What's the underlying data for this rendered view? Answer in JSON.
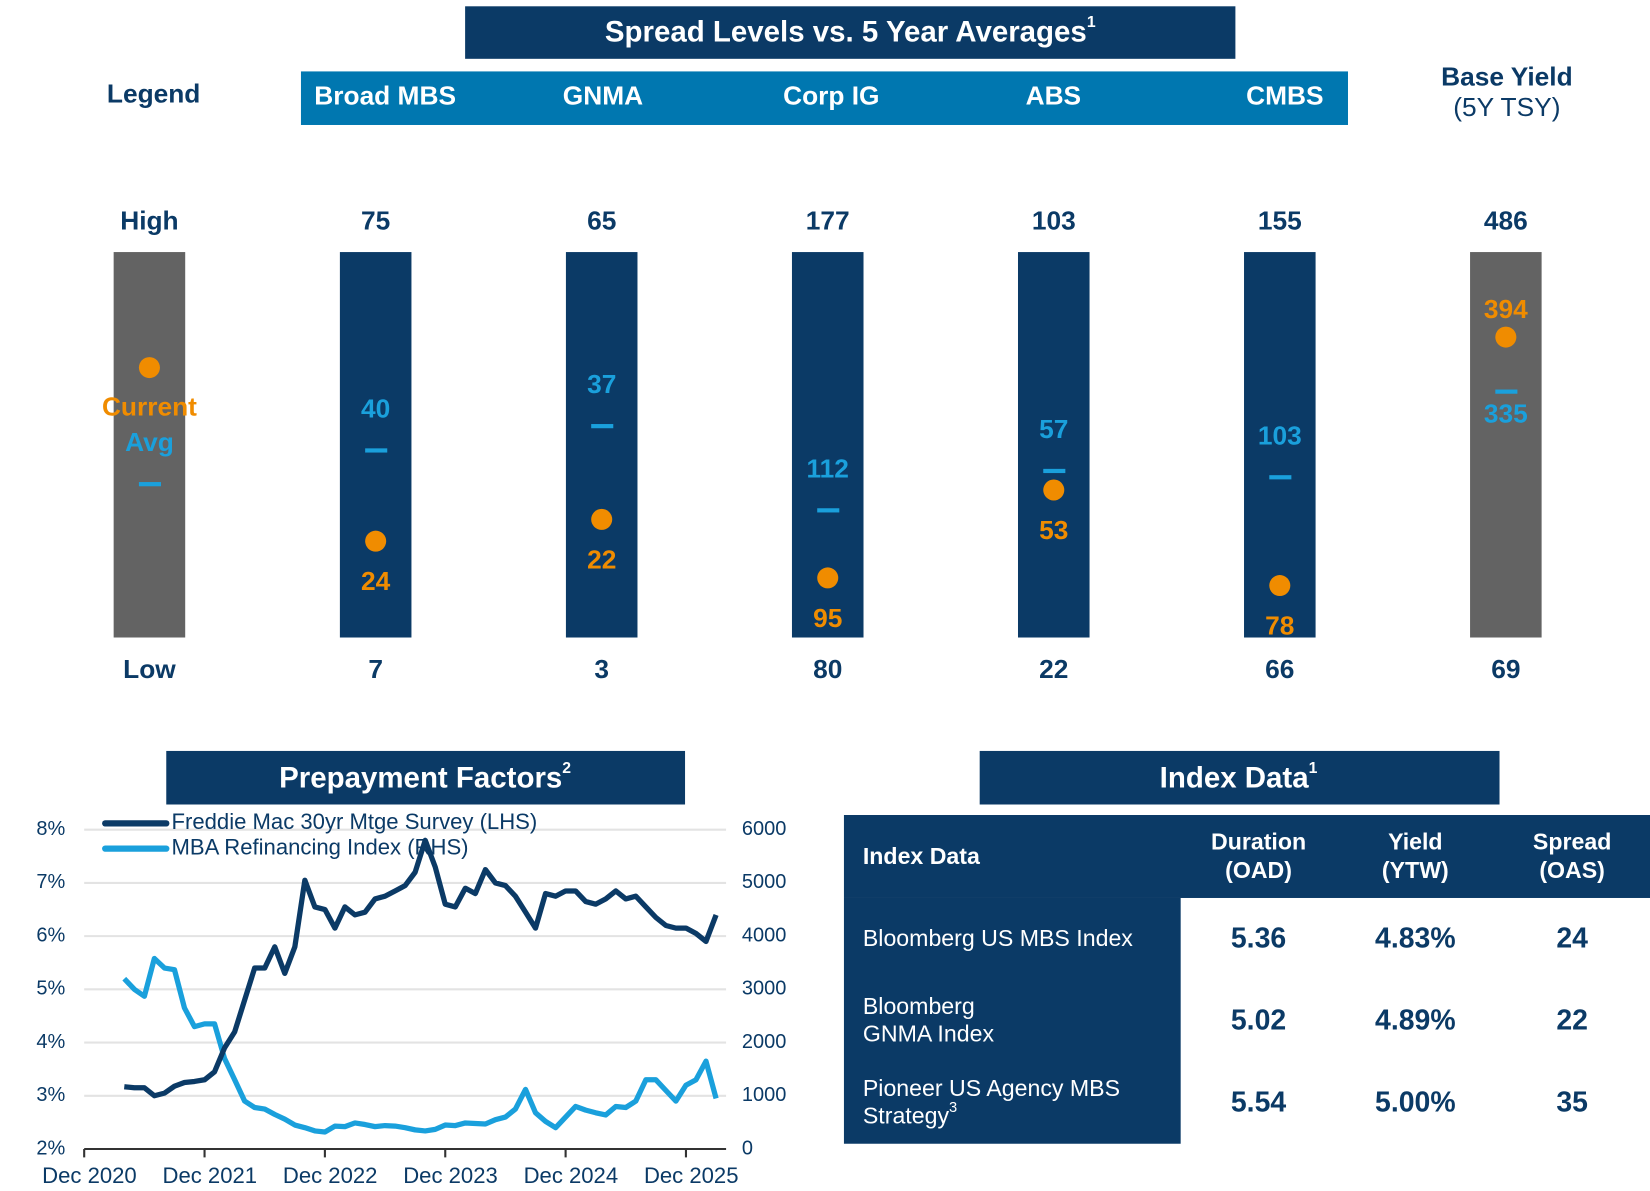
{
  "spread": {
    "title": "Spread Levels vs. 5 Year Averages",
    "title_note": "1",
    "current_color": "#f08c00",
    "avg_color": "#1aa0dc",
    "legend": {
      "label": "Legend",
      "high": "High",
      "low": "Low",
      "current": "Current",
      "avg": "Avg",
      "color": "#636363"
    },
    "columns": [
      {
        "name": "Broad MBS",
        "high": 75,
        "low": 7,
        "current": 24,
        "avg": 40,
        "color": "#0b3a66"
      },
      {
        "name": "GNMA",
        "high": 65,
        "low": 3,
        "current": 22,
        "avg": 37,
        "color": "#0b3a66"
      },
      {
        "name": "Corp IG",
        "high": 177,
        "low": 80,
        "current": 95,
        "avg": 112,
        "color": "#0b3a66"
      },
      {
        "name": "ABS",
        "high": 103,
        "low": 22,
        "current": 53,
        "avg": 57,
        "color": "#0b3a66"
      },
      {
        "name": "CMBS",
        "high": 155,
        "low": 66,
        "current": 78,
        "avg": 103,
        "color": "#0b3a66"
      },
      {
        "name": "Base Yield",
        "subname": "(5Y TSY)",
        "high": 486,
        "low": 69,
        "current": 394,
        "avg": 335,
        "color": "#636363"
      }
    ]
  },
  "chart_data": {
    "type": "line",
    "title": "Prepayment Factors",
    "title_note": "2",
    "x": [
      "2021-04",
      "2021-05",
      "2021-06",
      "2021-07",
      "2021-08",
      "2021-09",
      "2021-10",
      "2021-11",
      "2021-12",
      "2022-01",
      "2022-02",
      "2022-03",
      "2022-04",
      "2022-05",
      "2022-06",
      "2022-07",
      "2022-08",
      "2022-09",
      "2022-10",
      "2022-11",
      "2022-12",
      "2023-01",
      "2023-02",
      "2023-03",
      "2023-04",
      "2023-05",
      "2023-06",
      "2023-07",
      "2023-08",
      "2023-09",
      "2023-10",
      "2023-11",
      "2023-12",
      "2024-01",
      "2024-02",
      "2024-03",
      "2024-04",
      "2024-05",
      "2024-06",
      "2024-07",
      "2024-08",
      "2024-09",
      "2024-10",
      "2024-11",
      "2024-12",
      "2025-01",
      "2025-02",
      "2025-03",
      "2025-04",
      "2025-05",
      "2025-06",
      "2025-07",
      "2025-08",
      "2025-09",
      "2025-10",
      "2025-11",
      "2025-12",
      "2026-01",
      "2026-02",
      "2026-03"
    ],
    "series": [
      {
        "name": "Freddie Mac 30yr Mtge Survey (LHS)",
        "color": "#0b3a66",
        "values": [
          3.17,
          3.15,
          3.15,
          3.0,
          3.05,
          3.18,
          3.25,
          3.27,
          3.3,
          3.45,
          3.9,
          4.2,
          4.8,
          5.4,
          5.4,
          5.8,
          5.3,
          5.8,
          7.05,
          6.55,
          6.5,
          6.15,
          6.55,
          6.4,
          6.45,
          6.7,
          6.75,
          6.85,
          6.95,
          7.2,
          7.8,
          7.3,
          6.6,
          6.55,
          6.9,
          6.8,
          7.25,
          7.0,
          6.95,
          6.75,
          6.45,
          6.15,
          6.8,
          6.75,
          6.85,
          6.85,
          6.65,
          6.6,
          6.7,
          6.85,
          6.7,
          6.75,
          6.55,
          6.35,
          6.2,
          6.15,
          6.15,
          6.05,
          5.9,
          6.4
        ]
      },
      {
        "name": "MBA Refinancing Index (RHS)",
        "color": "#1aa0dc",
        "axis": "y2",
        "values": [
          3200,
          3000,
          2870,
          3580,
          3400,
          3370,
          2650,
          2300,
          2350,
          2350,
          1700,
          1300,
          900,
          780,
          750,
          650,
          560,
          450,
          400,
          340,
          320,
          430,
          420,
          490,
          460,
          420,
          440,
          430,
          400,
          360,
          340,
          370,
          450,
          440,
          490,
          480,
          470,
          550,
          600,
          750,
          1120,
          680,
          520,
          400,
          600,
          800,
          730,
          680,
          640,
          800,
          780,
          900,
          1300,
          1300,
          1100,
          900,
          1200,
          1300,
          1650,
          950
        ]
      }
    ],
    "xlim": [
      "2020-12",
      "2026-04"
    ],
    "xticks": [
      {
        "value": "2020-12",
        "label": "Dec 2020"
      },
      {
        "value": "2021-12",
        "label": "Dec 2021"
      },
      {
        "value": "2022-12",
        "label": "Dec 2022"
      },
      {
        "value": "2023-12",
        "label": "Dec 2023"
      },
      {
        "value": "2024-12",
        "label": "Dec 2024"
      },
      {
        "value": "2025-12",
        "label": "Dec 2025"
      }
    ],
    "ylim": [
      2,
      8
    ],
    "yticks": [
      {
        "value": 2,
        "label": "2%"
      },
      {
        "value": 3,
        "label": "3%"
      },
      {
        "value": 4,
        "label": "4%"
      },
      {
        "value": 5,
        "label": "5%"
      },
      {
        "value": 6,
        "label": "6%"
      },
      {
        "value": 7,
        "label": "7%"
      },
      {
        "value": 8,
        "label": "8%"
      }
    ],
    "y2lim": [
      0,
      6000
    ],
    "y2ticks": [
      0,
      1000,
      2000,
      3000,
      4000,
      5000,
      6000
    ],
    "grid": true,
    "legend": "upper left"
  },
  "index_table": {
    "title": "Index Data",
    "title_note": "1",
    "header": [
      [
        "Index Data"
      ],
      [
        "Duration",
        "(OAD)"
      ],
      [
        "Yield",
        "(YTW)"
      ],
      [
        "Spread",
        "(OAS)"
      ]
    ],
    "rows": [
      {
        "label": [
          "Bloomberg US MBS Index"
        ],
        "values": [
          "5.36",
          "4.83%",
          "24"
        ]
      },
      {
        "label": [
          "Bloomberg",
          "GNMA Index"
        ],
        "values": [
          "5.02",
          "4.89%",
          "22"
        ]
      },
      {
        "label": [
          "Pioneer US Agency MBS",
          "Strategy"
        ],
        "note": "3",
        "values": [
          "5.54",
          "5.00%",
          "35"
        ]
      }
    ]
  }
}
